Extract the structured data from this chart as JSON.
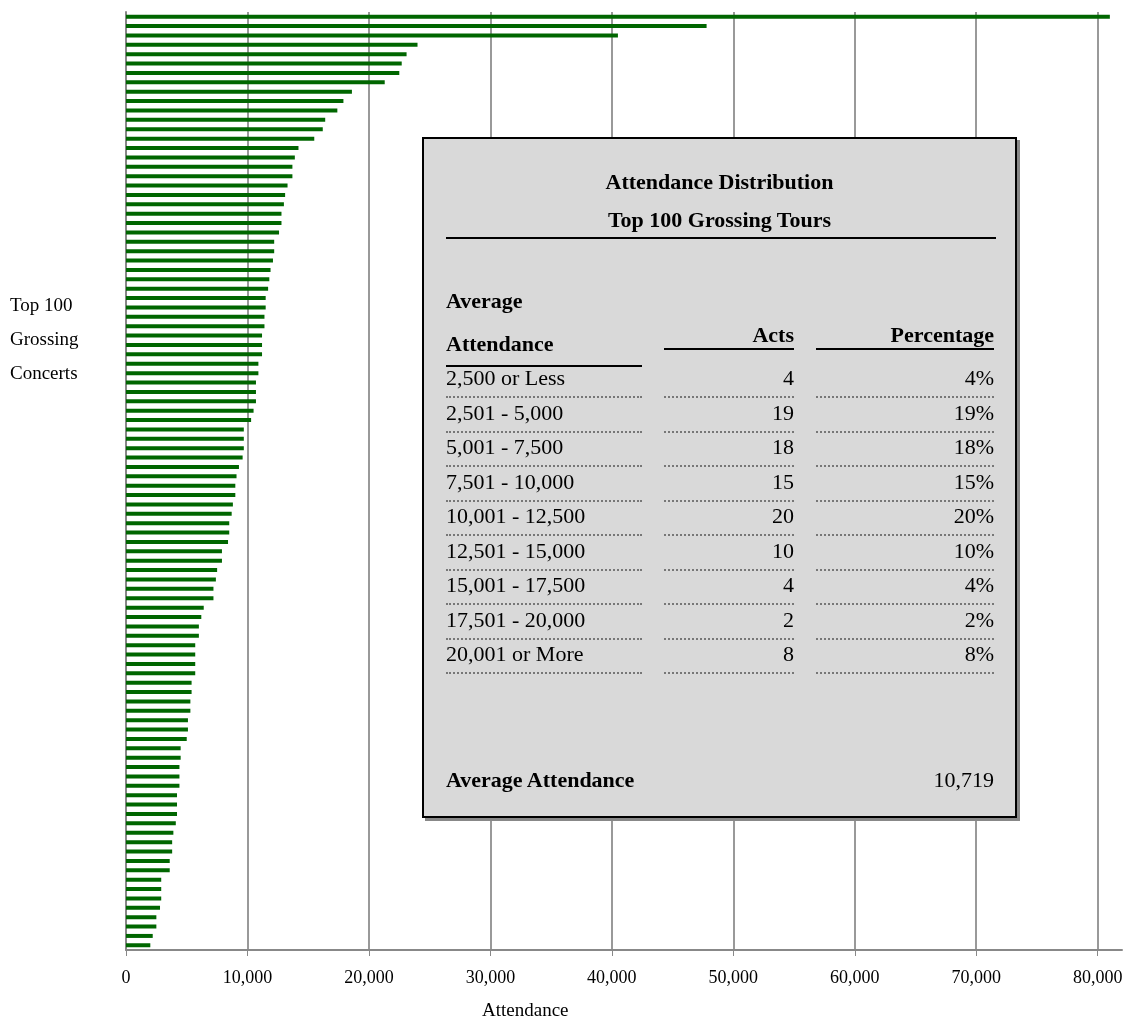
{
  "chart_data": {
    "type": "bar",
    "orientation": "horizontal",
    "xlabel": "Attendance",
    "ylabel": "Top 100 Grossing Concerts",
    "categories": [
      null,
      null,
      null,
      null,
      null,
      null,
      null,
      null,
      null,
      null,
      null,
      null,
      null,
      null,
      null,
      null,
      null,
      null,
      null,
      null,
      null,
      null,
      null,
      null,
      null,
      null,
      null,
      null,
      null,
      null,
      null,
      null,
      null,
      null,
      null,
      null,
      null,
      null,
      null,
      null,
      null,
      null,
      null,
      null,
      null,
      null,
      null,
      null,
      null,
      null,
      null,
      null,
      null,
      null,
      null,
      null,
      null,
      null,
      null,
      null,
      null,
      null,
      null,
      null,
      null,
      null,
      null,
      null,
      null,
      null,
      null,
      null,
      null,
      null,
      null,
      null,
      null,
      null,
      null,
      null,
      null,
      null,
      null,
      null,
      null,
      null,
      null,
      null,
      null,
      null,
      null,
      null,
      null,
      null,
      null,
      null,
      null,
      null,
      null,
      null
    ],
    "values": [
      81000,
      47800,
      40500,
      24000,
      23100,
      22700,
      22500,
      21300,
      18600,
      17900,
      17400,
      16400,
      16200,
      15500,
      14200,
      13900,
      13700,
      13700,
      13300,
      13100,
      13000,
      12800,
      12800,
      12600,
      12200,
      12200,
      12100,
      11900,
      11800,
      11700,
      11500,
      11500,
      11400,
      11400,
      11200,
      11200,
      11200,
      10900,
      10900,
      10700,
      10700,
      10700,
      10500,
      10300,
      9700,
      9700,
      9700,
      9600,
      9300,
      9100,
      9000,
      9000,
      8800,
      8700,
      8500,
      8500,
      8400,
      7900,
      7900,
      7500,
      7400,
      7200,
      7200,
      6400,
      6200,
      6000,
      6000,
      5700,
      5700,
      5700,
      5700,
      5400,
      5400,
      5300,
      5300,
      5100,
      5100,
      5000,
      4500,
      4500,
      4400,
      4400,
      4400,
      4200,
      4200,
      4200,
      4100,
      3900,
      3800,
      3800,
      3600,
      3600,
      2900,
      2900,
      2900,
      2800,
      2500,
      2500,
      2200,
      2000
    ],
    "color": "#006600",
    "xlim": [
      0,
      82000
    ],
    "xticks": [
      {
        "value": 0,
        "label": "0"
      },
      {
        "value": 10000,
        "label": "10,000"
      },
      {
        "value": 20000,
        "label": "20,000"
      },
      {
        "value": 30000,
        "label": "30,000"
      },
      {
        "value": 40000,
        "label": "40,000"
      },
      {
        "value": 50000,
        "label": "50,000"
      },
      {
        "value": 60000,
        "label": "60,000"
      },
      {
        "value": 70000,
        "label": "70,000"
      },
      {
        "value": 80000,
        "label": "80,000"
      }
    ],
    "grid": "x",
    "annotations": [
      "Attendance Distribution",
      "Top 100 Grossing Tours",
      "Average Attendance",
      "Acts",
      "Percentage",
      "2,500 or Less",
      "4",
      "4%",
      "2,501 - 5,000",
      "19",
      "19%",
      "5,001 - 7,500",
      "18",
      "18%",
      "7,501 - 10,000",
      "15",
      "15%",
      "10,001 - 12,500",
      "20",
      "20%",
      "12,501 - 15,000",
      "10",
      "10%",
      "15,001 - 17,500",
      "4",
      "4%",
      "17,501 - 20,000",
      "2",
      "2%",
      "20,001 or More",
      "8",
      "8%",
      "Average Attendance",
      "10,719"
    ]
  }
}
